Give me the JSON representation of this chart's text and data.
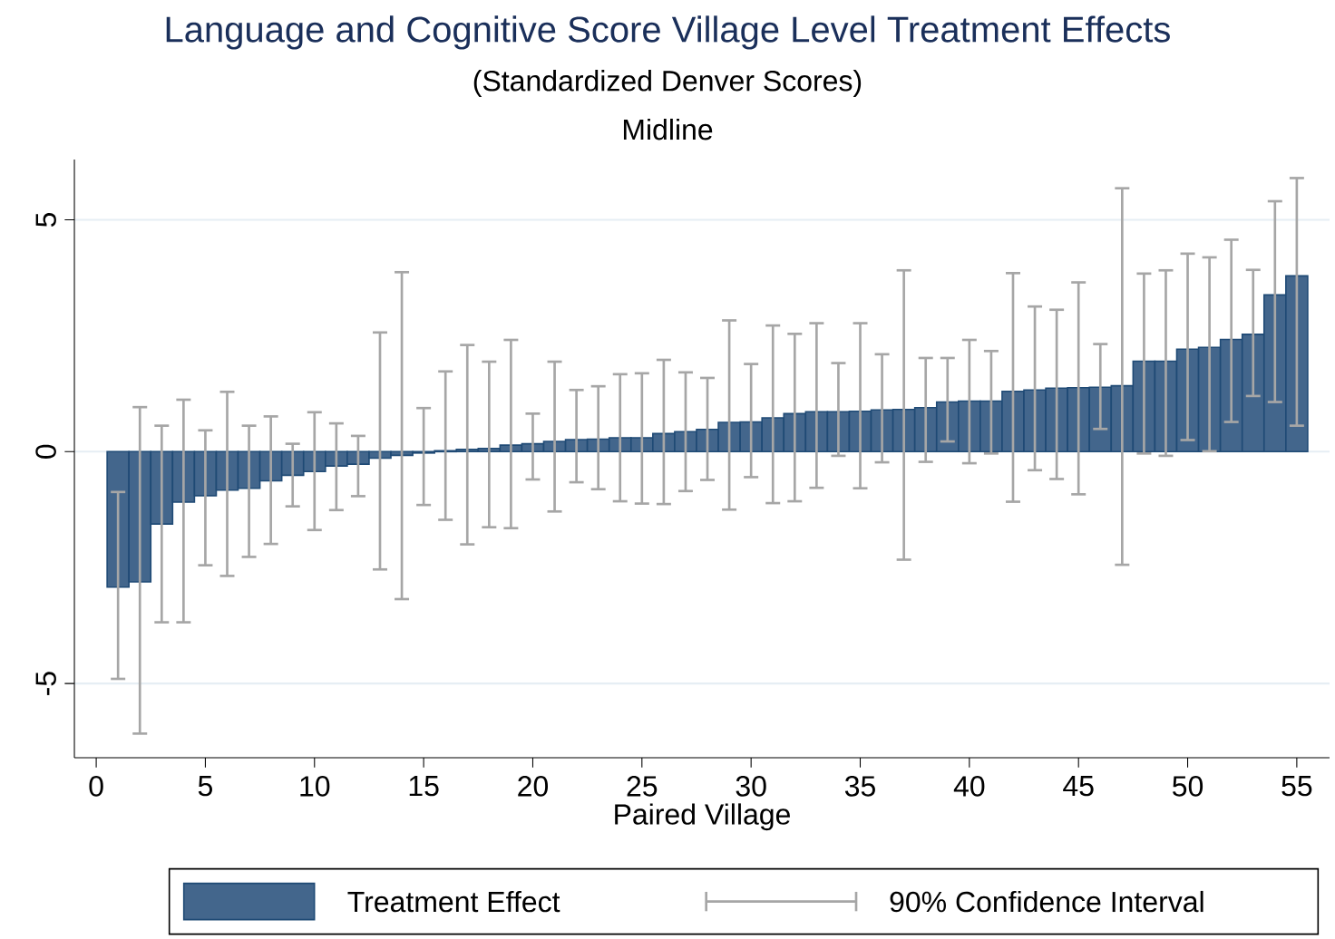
{
  "chart_data": {
    "type": "bar",
    "title": "Language and Cognitive Score Village Level Treatment Effects",
    "subtitle": "(Standardized Denver Scores)",
    "xlabel": "Paired Village",
    "annotations": [
      "Midline",
      "90% Confidence Interval"
    ],
    "x": [
      1,
      2,
      3,
      4,
      5,
      6,
      7,
      8,
      9,
      10,
      11,
      12,
      13,
      14,
      15,
      16,
      17,
      18,
      19,
      20,
      21,
      22,
      23,
      24,
      25,
      26,
      27,
      28,
      29,
      30,
      31,
      32,
      33,
      34,
      35,
      36,
      37,
      38,
      39,
      40,
      41,
      42,
      43,
      44,
      45,
      46,
      47,
      48,
      49,
      50,
      51,
      52,
      53,
      54,
      55
    ],
    "series": [
      {
        "name": "Treatment Effect",
        "color": "#43668c",
        "values": [
          -2.92,
          -2.81,
          -1.56,
          -1.09,
          -0.95,
          -0.83,
          -0.79,
          -0.63,
          -0.51,
          -0.43,
          -0.31,
          -0.27,
          -0.14,
          -0.08,
          -0.03,
          0.02,
          0.05,
          0.07,
          0.14,
          0.17,
          0.22,
          0.26,
          0.27,
          0.3,
          0.3,
          0.39,
          0.43,
          0.48,
          0.63,
          0.64,
          0.73,
          0.82,
          0.86,
          0.86,
          0.87,
          0.9,
          0.91,
          0.95,
          1.07,
          1.09,
          1.09,
          1.3,
          1.33,
          1.37,
          1.38,
          1.39,
          1.42,
          1.95,
          1.95,
          2.21,
          2.25,
          2.42,
          2.53,
          3.38,
          3.79
        ],
        "errors": [
          [
            -4.9,
            -0.87
          ],
          [
            -6.08,
            0.96
          ],
          [
            -3.68,
            0.56
          ],
          [
            -3.68,
            1.12
          ],
          [
            -2.45,
            0.46
          ],
          [
            -2.68,
            1.29
          ],
          [
            -2.27,
            0.56
          ],
          [
            -1.99,
            0.76
          ],
          [
            -1.18,
            0.17
          ],
          [
            -1.69,
            0.85
          ],
          [
            -1.26,
            0.61
          ],
          [
            -0.96,
            0.34
          ],
          [
            -2.54,
            2.57
          ],
          [
            -3.18,
            3.87
          ],
          [
            -1.15,
            0.94
          ],
          [
            -1.47,
            1.73
          ],
          [
            -2.0,
            2.3
          ],
          [
            -1.63,
            1.94
          ],
          [
            -1.65,
            2.41
          ],
          [
            -0.6,
            0.82
          ],
          [
            -1.29,
            1.94
          ],
          [
            -0.66,
            1.33
          ],
          [
            -0.81,
            1.41
          ],
          [
            -1.07,
            1.67
          ],
          [
            -1.12,
            1.69
          ],
          [
            -1.13,
            1.98
          ],
          [
            -0.85,
            1.71
          ],
          [
            -0.61,
            1.59
          ],
          [
            -1.25,
            2.83
          ],
          [
            -0.55,
            1.89
          ],
          [
            -1.11,
            2.72
          ],
          [
            -1.07,
            2.54
          ],
          [
            -0.78,
            2.77
          ],
          [
            -0.09,
            1.91
          ],
          [
            -0.79,
            2.77
          ],
          [
            -0.23,
            2.1
          ],
          [
            -2.33,
            3.91
          ],
          [
            -0.22,
            2.02
          ],
          [
            0.22,
            2.02
          ],
          [
            -0.25,
            2.41
          ],
          [
            -0.04,
            2.17
          ],
          [
            -1.08,
            3.85
          ],
          [
            -0.4,
            3.13
          ],
          [
            -0.59,
            3.06
          ],
          [
            -0.92,
            3.65
          ],
          [
            0.49,
            2.32
          ],
          [
            -2.44,
            5.68
          ],
          [
            -0.04,
            3.84
          ],
          [
            -0.09,
            3.91
          ],
          [
            0.25,
            4.27
          ],
          [
            0.01,
            4.19
          ],
          [
            0.64,
            4.57
          ],
          [
            1.2,
            3.92
          ],
          [
            1.07,
            5.4
          ],
          [
            0.56,
            5.9
          ]
        ]
      }
    ],
    "xlim": [
      -1,
      56.5
    ],
    "ylim": [
      -6.6,
      6.3
    ],
    "xticks": [
      0,
      5,
      10,
      15,
      20,
      25,
      30,
      35,
      40,
      45,
      50,
      55
    ],
    "yticks": [
      -5,
      0,
      5
    ],
    "grid": "y",
    "legend": "bottom"
  }
}
